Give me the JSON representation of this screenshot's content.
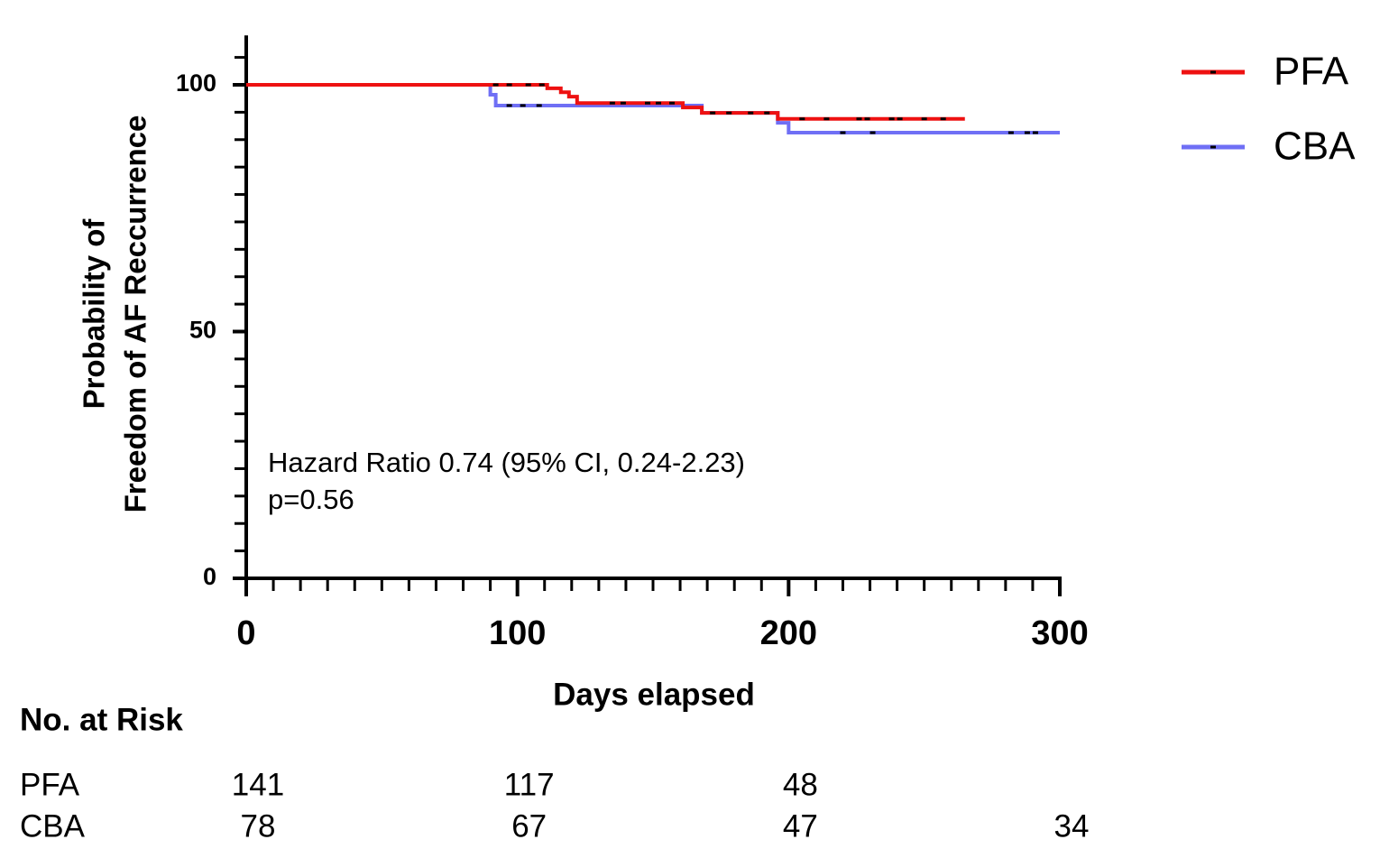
{
  "chart_data": {
    "type": "survival",
    "xlabel": "Days elapsed",
    "ylabel": [
      "Probability of",
      "Freedom of AF Reccurrence"
    ],
    "xlim": [
      0,
      300
    ],
    "xticks": [
      0,
      100,
      200,
      300
    ],
    "x_minor_per_major": 10,
    "ylim": [
      0,
      110
    ],
    "yticks": [
      0,
      50,
      100
    ],
    "y_minor_per_major": 9,
    "series": [
      {
        "name": "PFA",
        "color": "#ee1111",
        "x": [
          0,
          111,
          116,
          119,
          122,
          161,
          168,
          196,
          265
        ],
        "values": [
          100,
          99.3,
          98.5,
          97.6,
          96.3,
          95.4,
          94.3,
          93.1,
          93.1
        ],
        "censored": [
          92,
          97,
          104,
          109,
          135,
          139,
          148,
          152,
          157,
          172,
          178,
          186,
          192,
          205,
          214,
          226,
          229,
          238,
          241,
          250,
          257
        ]
      },
      {
        "name": "CBA",
        "color": "#6f6ff5",
        "x": [
          0,
          90,
          92,
          168,
          196,
          200,
          300
        ],
        "values": [
          100,
          98,
          95.8,
          94.3,
          92.3,
          90.3,
          90.3
        ],
        "censored": [
          97,
          102,
          108,
          220,
          231,
          282,
          288,
          291
        ]
      }
    ],
    "annotations": [
      "Hazard Ratio 0.74 (95% CI, 0.24-2.23)",
      "p=0.56"
    ],
    "risk_table": {
      "title": "No. at Risk",
      "rows": [
        {
          "name": "PFA",
          "values": [
            141,
            117,
            48,
            null
          ]
        },
        {
          "name": "CBA",
          "values": [
            78,
            67,
            47,
            34
          ]
        }
      ]
    }
  }
}
